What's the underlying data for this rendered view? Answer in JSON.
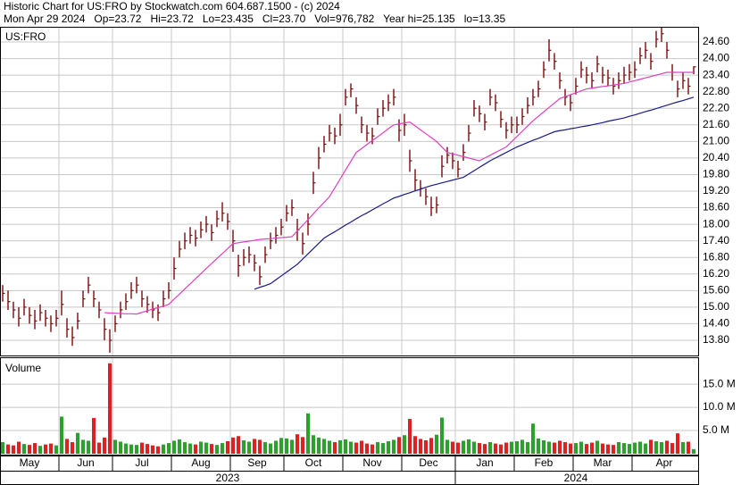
{
  "header": {
    "line1": "Historic Chart for US:FRO by Stockwatch.com 604.687.1500 - (c) 2024",
    "line2": "Mon Apr 29 2024   Op=23.72   Hi=23.72   Lo=23.435   Cl=23.70   Vol=976,782   Year hi=25.135   lo=13.35"
  },
  "x_axis": {
    "months": [
      {
        "value": 0,
        "label": "May"
      },
      {
        "value": 11,
        "label": "Jun"
      },
      {
        "value": 21,
        "label": "Jul"
      },
      {
        "value": 32,
        "label": "Aug"
      },
      {
        "value": 43,
        "label": "Sep"
      },
      {
        "value": 53,
        "label": "Oct"
      },
      {
        "value": 64,
        "label": "Nov"
      },
      {
        "value": 75,
        "label": "Dec"
      },
      {
        "value": 85,
        "label": "Jan"
      },
      {
        "value": 96,
        "label": "Feb"
      },
      {
        "value": 107,
        "label": "Mar"
      },
      {
        "value": 118,
        "label": "Apr"
      }
    ],
    "years": [
      {
        "value": 0,
        "label": "2023"
      },
      {
        "value": 85,
        "label": "2024"
      }
    ]
  },
  "chart_data": [
    {
      "type": "ohlc",
      "label": "US:FRO",
      "color": "#7a0c0c",
      "grid": true,
      "close": [
        15.5,
        15.2,
        14.9,
        14.6,
        15.0,
        14.7,
        14.5,
        14.8,
        14.6,
        14.4,
        14.6,
        15.1,
        14.2,
        13.9,
        14.5,
        15.3,
        15.8,
        15.3,
        14.9,
        14.2,
        13.8,
        14.4,
        14.9,
        15.2,
        15.6,
        15.8,
        15.3,
        15.1,
        14.9,
        14.8,
        15.3,
        15.6,
        16.4,
        17.1,
        17.4,
        17.6,
        17.5,
        17.8,
        18.0,
        17.7,
        18.2,
        18.4,
        18.1,
        17.4,
        16.5,
        16.8,
        16.9,
        16.6,
        16.1,
        16.9,
        17.4,
        17.6,
        17.9,
        18.4,
        18.6,
        17.8,
        17.3,
        18.0,
        19.5,
        20.4,
        20.9,
        21.3,
        21.2,
        21.6,
        22.6,
        22.9,
        22.3,
        21.6,
        21.3,
        21.2,
        21.9,
        22.2,
        22.4,
        22.6,
        21.4,
        21.6,
        20.3,
        19.6,
        19.3,
        19.0,
        18.6,
        18.7,
        20.1,
        20.5,
        20.3,
        20.0,
        20.6,
        21.3,
        22.2,
        22.0,
        21.7,
        22.6,
        22.4,
        21.8,
        21.4,
        21.6,
        21.6,
        21.9,
        22.3,
        22.6,
        22.9,
        23.6,
        24.3,
        23.9,
        23.2,
        22.6,
        22.4,
        23.0,
        23.6,
        23.4,
        23.2,
        23.8,
        23.4,
        23.3,
        23.0,
        23.2,
        23.4,
        23.5,
        23.6,
        24.1,
        24.3,
        23.9,
        24.7,
        24.9,
        24.3,
        23.5,
        22.9,
        23.2,
        23.0,
        23.7
      ],
      "high": [
        15.8,
        15.6,
        15.2,
        15.0,
        15.3,
        15.0,
        14.9,
        15.1,
        14.9,
        14.7,
        14.9,
        15.6,
        14.6,
        14.3,
        14.8,
        15.6,
        16.1,
        15.6,
        15.2,
        14.6,
        14.2,
        14.7,
        15.2,
        15.5,
        15.9,
        16.1,
        15.6,
        15.4,
        15.2,
        15.1,
        15.6,
        15.9,
        16.8,
        17.4,
        17.7,
        17.9,
        17.8,
        18.1,
        18.3,
        18.0,
        18.5,
        18.8,
        18.4,
        17.8,
        16.9,
        17.1,
        17.2,
        16.9,
        16.5,
        17.2,
        17.7,
        17.9,
        18.2,
        18.7,
        18.9,
        18.2,
        17.7,
        18.4,
        19.9,
        20.8,
        21.2,
        21.6,
        21.5,
        22.0,
        22.9,
        23.1,
        22.6,
        21.9,
        21.6,
        21.5,
        22.2,
        22.5,
        22.7,
        22.9,
        21.8,
        22.0,
        20.7,
        20.0,
        19.6,
        19.3,
        19.0,
        19.0,
        20.5,
        20.8,
        20.6,
        20.3,
        20.9,
        21.6,
        22.5,
        22.3,
        22.0,
        22.9,
        22.7,
        22.1,
        21.7,
        21.9,
        21.9,
        22.2,
        22.6,
        22.9,
        23.2,
        23.9,
        24.7,
        24.2,
        23.5,
        22.9,
        22.7,
        23.3,
        23.9,
        23.7,
        23.5,
        24.1,
        23.7,
        23.6,
        23.3,
        23.5,
        23.7,
        23.8,
        23.9,
        24.4,
        24.6,
        24.2,
        25.0,
        25.13,
        24.6,
        23.8,
        23.2,
        23.5,
        23.3,
        23.72
      ],
      "low": [
        15.2,
        14.9,
        14.6,
        14.3,
        14.7,
        14.4,
        14.2,
        14.5,
        14.3,
        14.1,
        14.3,
        14.7,
        13.9,
        13.6,
        14.2,
        15.0,
        15.5,
        15.0,
        14.6,
        13.8,
        13.35,
        14.1,
        14.6,
        14.9,
        15.3,
        15.5,
        15.0,
        14.8,
        14.6,
        14.5,
        15.0,
        15.3,
        16.0,
        16.8,
        17.1,
        17.3,
        17.2,
        17.5,
        17.7,
        17.4,
        17.9,
        18.1,
        17.8,
        17.0,
        16.1,
        16.5,
        16.6,
        16.3,
        15.8,
        16.6,
        17.1,
        17.3,
        17.6,
        18.1,
        18.3,
        17.4,
        16.9,
        17.6,
        19.1,
        20.0,
        20.6,
        21.0,
        20.9,
        21.2,
        22.3,
        22.6,
        22.0,
        21.3,
        21.0,
        20.9,
        21.6,
        21.9,
        22.1,
        22.3,
        21.0,
        21.2,
        19.9,
        19.2,
        19.0,
        18.7,
        18.3,
        18.4,
        19.7,
        20.2,
        20.0,
        19.7,
        20.3,
        21.0,
        21.9,
        21.7,
        21.4,
        22.3,
        22.1,
        21.5,
        21.1,
        21.3,
        21.3,
        21.6,
        22.0,
        22.3,
        22.6,
        23.3,
        23.9,
        23.6,
        22.9,
        22.3,
        22.1,
        22.7,
        23.3,
        23.1,
        22.9,
        23.5,
        23.1,
        23.0,
        22.7,
        22.9,
        23.1,
        23.2,
        23.3,
        23.8,
        24.0,
        23.6,
        24.4,
        24.6,
        24.0,
        23.2,
        22.6,
        22.9,
        22.7,
        23.435
      ],
      "series": [
        {
          "color": "#e040c0",
          "values": [
            null,
            null,
            null,
            null,
            null,
            null,
            null,
            null,
            null,
            null,
            null,
            null,
            null,
            null,
            null,
            null,
            null,
            null,
            null,
            14.8,
            14.79,
            14.78,
            14.77,
            14.76,
            14.76,
            14.75,
            14.81,
            14.87,
            14.93,
            14.98,
            15.04,
            15.1,
            15.29,
            15.47,
            15.66,
            15.84,
            16.03,
            16.21,
            16.4,
            16.58,
            16.76,
            16.94,
            17.12,
            17.3,
            17.33,
            17.36,
            17.39,
            17.42,
            17.45,
            17.47,
            17.48,
            17.5,
            17.52,
            17.53,
            17.55,
            17.76,
            17.96,
            18.17,
            18.38,
            18.59,
            18.79,
            19.0,
            19.32,
            19.64,
            19.96,
            20.28,
            20.6,
            20.74,
            20.89,
            21.03,
            21.17,
            21.31,
            21.46,
            21.6,
            21.63,
            21.67,
            21.7,
            21.56,
            21.42,
            21.28,
            21.14,
            21.0,
            20.8,
            20.6,
            20.55,
            20.5,
            20.45,
            20.4,
            20.35,
            20.3,
            20.4,
            20.5,
            20.6,
            20.7,
            20.8,
            20.99,
            21.18,
            21.37,
            21.56,
            21.75,
            21.91,
            22.07,
            22.23,
            22.39,
            22.55,
            22.62,
            22.69,
            22.76,
            22.83,
            22.9,
            22.93,
            22.96,
            22.99,
            23.01,
            23.04,
            23.07,
            23.1,
            23.15,
            23.2,
            23.25,
            23.3,
            23.35,
            23.4,
            23.45,
            23.5,
            23.5,
            23.5,
            23.5,
            23.5,
            23.5
          ]
        },
        {
          "color": "#1a1a8c",
          "values": [
            null,
            null,
            null,
            null,
            null,
            null,
            null,
            null,
            null,
            null,
            null,
            null,
            null,
            null,
            null,
            null,
            null,
            null,
            null,
            null,
            null,
            null,
            null,
            null,
            null,
            null,
            null,
            null,
            null,
            null,
            null,
            null,
            null,
            null,
            null,
            null,
            null,
            null,
            null,
            null,
            null,
            null,
            null,
            null,
            null,
            null,
            null,
            15.65,
            15.72,
            15.78,
            15.85,
            15.99,
            16.13,
            16.27,
            16.41,
            16.55,
            16.74,
            16.93,
            17.12,
            17.31,
            17.5,
            17.62,
            17.73,
            17.85,
            17.97,
            18.08,
            18.2,
            18.31,
            18.41,
            18.52,
            18.63,
            18.74,
            18.84,
            18.95,
            19.01,
            19.08,
            19.14,
            19.21,
            19.27,
            19.34,
            19.4,
            19.45,
            19.5,
            19.55,
            19.6,
            19.65,
            19.7,
            19.82,
            19.94,
            20.06,
            20.18,
            20.3,
            20.4,
            20.5,
            20.6,
            20.7,
            20.8,
            20.88,
            20.96,
            21.04,
            21.11,
            21.19,
            21.27,
            21.35,
            21.39,
            21.42,
            21.46,
            21.49,
            21.53,
            21.56,
            21.6,
            21.64,
            21.68,
            21.73,
            21.77,
            21.81,
            21.85,
            21.91,
            21.96,
            22.02,
            22.08,
            22.13,
            22.19,
            22.25,
            22.31,
            22.37,
            22.43,
            22.48,
            22.54,
            22.6
          ]
        }
      ],
      "ylim": [
        13.25,
        25.15
      ],
      "yticks": [
        {
          "value": 13.8,
          "label": "13.80"
        },
        {
          "value": 14.4,
          "label": "14.40"
        },
        {
          "value": 15,
          "label": "15.00"
        },
        {
          "value": 15.6,
          "label": "15.60"
        },
        {
          "value": 16.2,
          "label": "16.20"
        },
        {
          "value": 16.8,
          "label": "16.80"
        },
        {
          "value": 17.4,
          "label": "17.40"
        },
        {
          "value": 18,
          "label": "18.00"
        },
        {
          "value": 18.6,
          "label": "18.60"
        },
        {
          "value": 19.2,
          "label": "19.20"
        },
        {
          "value": 19.8,
          "label": "19.80"
        },
        {
          "value": 20.4,
          "label": "20.40"
        },
        {
          "value": 21,
          "label": "21.00"
        },
        {
          "value": 21.6,
          "label": "21.60"
        },
        {
          "value": 22.2,
          "label": "22.20"
        },
        {
          "value": 22.8,
          "label": "22.80"
        },
        {
          "value": 23.4,
          "label": "23.40"
        },
        {
          "value": 24,
          "label": "24.00"
        },
        {
          "value": 24.6,
          "label": "24.60"
        }
      ]
    },
    {
      "type": "bar",
      "label": "Volume",
      "up_color": "#2ca02c",
      "down_color": "#e02020",
      "grid": true,
      "values": [
        2.5,
        2.0,
        1.8,
        2.6,
        2.1,
        1.9,
        2.3,
        1.7,
        2.0,
        2.2,
        1.8,
        8.0,
        3.2,
        2.5,
        4.5,
        3.0,
        2.8,
        7.7,
        2.4,
        3.5,
        19.5,
        3.0,
        2.6,
        2.2,
        2.0,
        1.9,
        2.4,
        2.1,
        1.8,
        1.6,
        2.0,
        2.3,
        2.8,
        3.1,
        2.5,
        2.2,
        2.0,
        2.6,
        2.4,
        2.1,
        1.9,
        2.3,
        2.7,
        3.5,
        3.8,
        2.9,
        2.6,
        3.2,
        3.0,
        2.5,
        2.2,
        2.8,
        3.4,
        3.3,
        3.0,
        4.2,
        3.6,
        8.7,
        4.0,
        3.5,
        3.2,
        2.8,
        2.5,
        2.9,
        3.1,
        2.6,
        2.4,
        2.8,
        2.2,
        2.0,
        2.5,
        2.3,
        2.7,
        3.0,
        3.6,
        4.0,
        7.5,
        3.8,
        3.2,
        2.9,
        3.4,
        4.1,
        7.8,
        3.0,
        2.6,
        2.4,
        2.8,
        3.1,
        2.6,
        2.3,
        2.1,
        2.5,
        2.2,
        2.0,
        2.4,
        2.6,
        2.7,
        3.0,
        2.5,
        6.5,
        3.3,
        2.9,
        2.6,
        2.4,
        2.8,
        2.5,
        2.2,
        2.3,
        2.6,
        2.1,
        2.4,
        2.8,
        2.2,
        2.0,
        1.9,
        2.5,
        2.3,
        2.1,
        2.4,
        2.6,
        2.2,
        3.0,
        2.7,
        2.5,
        2.8,
        2.3,
        4.4,
        2.5,
        2.6,
        1.0
      ],
      "ylim": [
        0,
        20.8
      ],
      "yticks": [
        {
          "value": 5,
          "label": "5.0 M"
        },
        {
          "value": 10,
          "label": "10.0 M"
        },
        {
          "value": 15,
          "label": "15.0 M"
        }
      ]
    }
  ]
}
